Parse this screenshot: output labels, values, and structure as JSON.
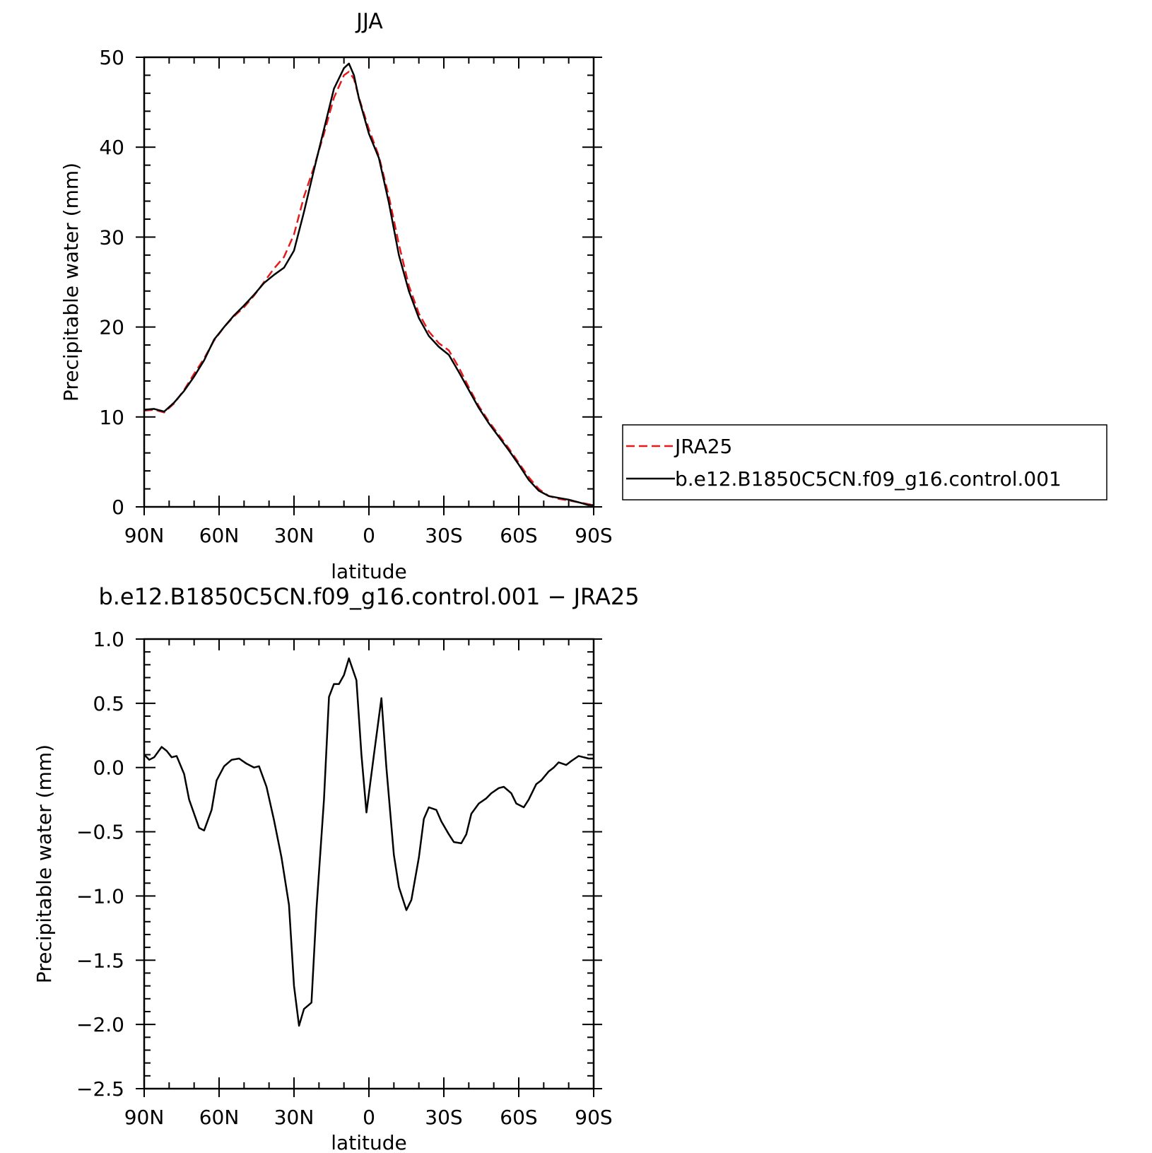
{
  "chart_data": [
    {
      "type": "line",
      "title": "JJA",
      "xlabel": "latitude",
      "ylabel": "Precipitable water (mm)",
      "xlim": [
        90,
        -90
      ],
      "ylim": [
        0,
        50
      ],
      "xticks": [
        90,
        60,
        30,
        0,
        -30,
        -60,
        -90
      ],
      "xtick_labels": [
        "90N",
        "60N",
        "30N",
        "0",
        "30S",
        "60S",
        "90S"
      ],
      "yticks": [
        0,
        10,
        20,
        30,
        40,
        50
      ],
      "ytick_labels": [
        "0",
        "10",
        "20",
        "30",
        "40",
        "50"
      ],
      "legend": "right",
      "series": [
        {
          "name": "JRA25",
          "color": "#e41a1c",
          "dash": "dashed",
          "x": [
            90,
            86,
            82,
            78,
            74,
            70,
            66,
            62,
            58,
            54,
            50,
            46,
            42,
            38,
            34,
            30,
            26,
            22,
            18,
            14,
            10,
            8,
            6,
            4,
            0,
            -4,
            -8,
            -12,
            -16,
            -20,
            -24,
            -28,
            -32,
            -36,
            -40,
            -44,
            -48,
            -52,
            -56,
            -60,
            -64,
            -68,
            -72,
            -76,
            -80,
            -84,
            -88,
            -90
          ],
          "y": [
            10.7,
            10.8,
            10.5,
            11.5,
            13.0,
            14.8,
            16.5,
            18.5,
            20.0,
            21.2,
            22.2,
            23.5,
            25.0,
            26.5,
            27.8,
            30.3,
            34.5,
            37.8,
            41.5,
            45.5,
            48.0,
            48.4,
            47.6,
            45.5,
            42.0,
            39.0,
            34.5,
            29.2,
            24.6,
            21.5,
            19.5,
            18.2,
            17.4,
            15.5,
            13.3,
            11.2,
            9.5,
            8.0,
            6.5,
            4.9,
            3.3,
            2.0,
            1.2,
            0.9,
            0.7,
            0.5,
            0.3,
            0.2
          ]
        },
        {
          "name": "b.e12.B1850C5CN.f09_g16.control.001",
          "color": "#000000",
          "dash": "solid",
          "x": [
            90,
            86,
            82,
            78,
            74,
            70,
            66,
            62,
            58,
            54,
            50,
            46,
            42,
            38,
            34,
            30,
            26,
            22,
            18,
            14,
            10,
            8,
            6,
            4,
            0,
            -4,
            -8,
            -12,
            -16,
            -20,
            -24,
            -28,
            -32,
            -36,
            -40,
            -44,
            -48,
            -52,
            -56,
            -60,
            -64,
            -68,
            -72,
            -76,
            -80,
            -84,
            -88,
            -90
          ],
          "y": [
            10.8,
            10.9,
            10.6,
            11.6,
            12.9,
            14.5,
            16.3,
            18.6,
            20.0,
            21.3,
            22.4,
            23.6,
            24.9,
            25.8,
            26.6,
            28.5,
            32.8,
            37.5,
            42.0,
            46.5,
            48.8,
            49.3,
            48.0,
            45.4,
            41.5,
            38.8,
            33.8,
            28.0,
            24.0,
            21.0,
            19.0,
            17.8,
            16.9,
            15.0,
            13.0,
            11.0,
            9.3,
            7.8,
            6.3,
            4.7,
            3.0,
            1.8,
            1.2,
            1.0,
            0.8,
            0.5,
            0.2,
            0.2
          ]
        }
      ]
    },
    {
      "type": "line",
      "title": "b.e12.B1850C5CN.f09_g16.control.001 − JRA25",
      "xlabel": "latitude",
      "ylabel": "Precipitable water (mm)",
      "xlim": [
        90,
        -90
      ],
      "ylim": [
        -2.5,
        1.0
      ],
      "xticks": [
        90,
        60,
        30,
        0,
        -30,
        -60,
        -90
      ],
      "xtick_labels": [
        "90N",
        "60N",
        "30N",
        "0",
        "30S",
        "60S",
        "90S"
      ],
      "yticks": [
        1.0,
        0.5,
        0.0,
        -0.5,
        -1.0,
        -1.5,
        -2.0,
        -2.5
      ],
      "ytick_labels": [
        "1.0",
        "0.5",
        "0.0",
        "−0.5",
        "−1.0",
        "−1.5",
        "−2.0",
        "−2.5"
      ],
      "series": [
        {
          "color": "#000000",
          "dash": "solid",
          "x": [
            90,
            88,
            86,
            83,
            81,
            79,
            77,
            74,
            72,
            68,
            66,
            63,
            61,
            58,
            55,
            52,
            49,
            46,
            44,
            41,
            38,
            35,
            32,
            30,
            28,
            26,
            23,
            21,
            18,
            16,
            14,
            12,
            10,
            8,
            5,
            3,
            1,
            -2,
            -5,
            -7,
            -10,
            -12,
            -15,
            -17,
            -20,
            -22,
            -24,
            -27,
            -29,
            -32,
            -34,
            -37,
            -39,
            -41,
            -44,
            -47,
            -49,
            -52,
            -54,
            -57,
            -59,
            -62,
            -64,
            -67,
            -69,
            -72,
            -74,
            -76,
            -79,
            -81,
            -84,
            -86,
            -88,
            -90
          ],
          "y": [
            0.1,
            0.06,
            0.08,
            0.16,
            0.13,
            0.08,
            0.09,
            -0.05,
            -0.25,
            -0.47,
            -0.49,
            -0.33,
            -0.1,
            0.01,
            0.06,
            0.07,
            0.03,
            0.0,
            0.01,
            -0.15,
            -0.41,
            -0.7,
            -1.07,
            -1.7,
            -2.01,
            -1.88,
            -1.83,
            -1.1,
            -0.25,
            0.55,
            0.65,
            0.65,
            0.72,
            0.85,
            0.68,
            0.1,
            -0.35,
            0.1,
            0.54,
            0.0,
            -0.68,
            -0.93,
            -1.11,
            -1.03,
            -0.7,
            -0.4,
            -0.31,
            -0.33,
            -0.42,
            -0.52,
            -0.58,
            -0.59,
            -0.52,
            -0.36,
            -0.28,
            -0.24,
            -0.2,
            -0.16,
            -0.15,
            -0.2,
            -0.28,
            -0.31,
            -0.25,
            -0.13,
            -0.1,
            -0.03,
            0.0,
            0.04,
            0.02,
            0.05,
            0.09,
            0.08,
            0.07,
            0.07
          ]
        }
      ]
    }
  ]
}
